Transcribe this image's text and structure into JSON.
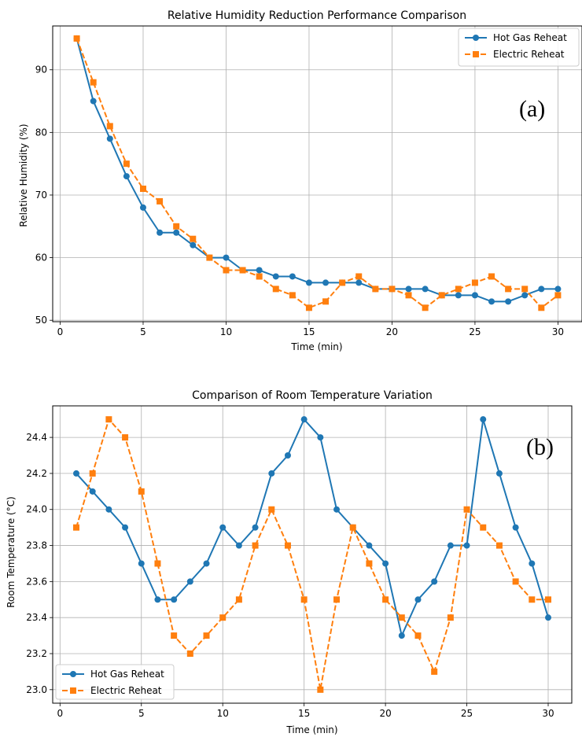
{
  "colors": {
    "hot_gas": "#1f77b4",
    "electric": "#ff7f0e",
    "grid": "#b0b0b0"
  },
  "chart_data": [
    {
      "type": "line",
      "panel_label": "(a)",
      "title": "Relative Humidity Reduction Performance Comparison",
      "xlabel": "Time (min)",
      "ylabel": "Relative Humidity (%)",
      "xlim": [
        -0.45,
        31.45
      ],
      "ylim": [
        49.775,
        97.0
      ],
      "xticks": [
        0,
        5,
        10,
        15,
        20,
        25,
        30
      ],
      "xtick_labels": [
        "0",
        "5",
        "10",
        "15",
        "20",
        "25",
        "30"
      ],
      "yticks": [
        50,
        60,
        70,
        80,
        90
      ],
      "ytick_labels": [
        "50",
        "60",
        "70",
        "80",
        "90"
      ],
      "grid": true,
      "legend_position": "top-right",
      "x": [
        1,
        2,
        3,
        4,
        5,
        6,
        7,
        8,
        9,
        10,
        11,
        12,
        13,
        14,
        15,
        16,
        17,
        18,
        19,
        20,
        21,
        22,
        23,
        24,
        25,
        26,
        27,
        28,
        29,
        30
      ],
      "series": [
        {
          "name": "Hot Gas Reheat",
          "marker": "circle",
          "dashed": false,
          "values": [
            95,
            85,
            79,
            73,
            68,
            64,
            64,
            62,
            60,
            60,
            58,
            58,
            57,
            57,
            56,
            56,
            56,
            56,
            55,
            55,
            55,
            55,
            54,
            54,
            54,
            53,
            53,
            54,
            55,
            55
          ]
        },
        {
          "name": "Electric Reheat",
          "marker": "square",
          "dashed": true,
          "values": [
            95,
            88,
            81,
            75,
            71,
            69,
            65,
            63,
            60,
            58,
            58,
            57,
            55,
            54,
            52,
            53,
            56,
            57,
            55,
            55,
            54,
            52,
            54,
            55,
            56,
            57,
            55,
            55,
            52,
            54
          ]
        }
      ]
    },
    {
      "type": "line",
      "panel_label": "(b)",
      "title": "Comparison of Room Temperature Variation",
      "xlabel": "Time (min)",
      "ylabel": "Room Temperature (°C)",
      "xlim": [
        -0.45,
        31.45
      ],
      "ylim": [
        22.925,
        24.575
      ],
      "xticks": [
        0,
        5,
        10,
        15,
        20,
        25,
        30
      ],
      "xtick_labels": [
        "0",
        "5",
        "10",
        "15",
        "20",
        "25",
        "30"
      ],
      "yticks": [
        23.0,
        23.2,
        23.4,
        23.6,
        23.8,
        24.0,
        24.2,
        24.4
      ],
      "ytick_labels": [
        "23.0",
        "23.2",
        "23.4",
        "23.6",
        "23.8",
        "24.0",
        "24.2",
        "24.4"
      ],
      "grid": true,
      "legend_position": "bottom-left",
      "x": [
        1,
        2,
        3,
        4,
        5,
        6,
        7,
        8,
        9,
        10,
        11,
        12,
        13,
        14,
        15,
        16,
        17,
        18,
        19,
        20,
        21,
        22,
        23,
        24,
        25,
        26,
        27,
        28,
        29,
        30
      ],
      "series": [
        {
          "name": "Hot Gas Reheat",
          "marker": "circle",
          "dashed": false,
          "values": [
            24.2,
            24.1,
            24.0,
            23.9,
            23.7,
            23.5,
            23.5,
            23.6,
            23.7,
            23.9,
            23.8,
            23.9,
            24.2,
            24.3,
            24.5,
            24.4,
            24.0,
            23.9,
            23.8,
            23.7,
            23.3,
            23.5,
            23.6,
            23.8,
            23.8,
            24.5,
            24.2,
            23.9,
            23.7,
            23.4
          ]
        },
        {
          "name": "Electric Reheat",
          "marker": "square",
          "dashed": true,
          "values": [
            23.9,
            24.2,
            24.5,
            24.4,
            24.1,
            23.7,
            23.3,
            23.2,
            23.3,
            23.4,
            23.5,
            23.8,
            24.0,
            23.8,
            23.5,
            23.0,
            23.5,
            23.9,
            23.7,
            23.5,
            23.4,
            23.3,
            23.1,
            23.4,
            24.0,
            23.9,
            23.8,
            23.6,
            23.5,
            23.5
          ]
        }
      ]
    }
  ]
}
